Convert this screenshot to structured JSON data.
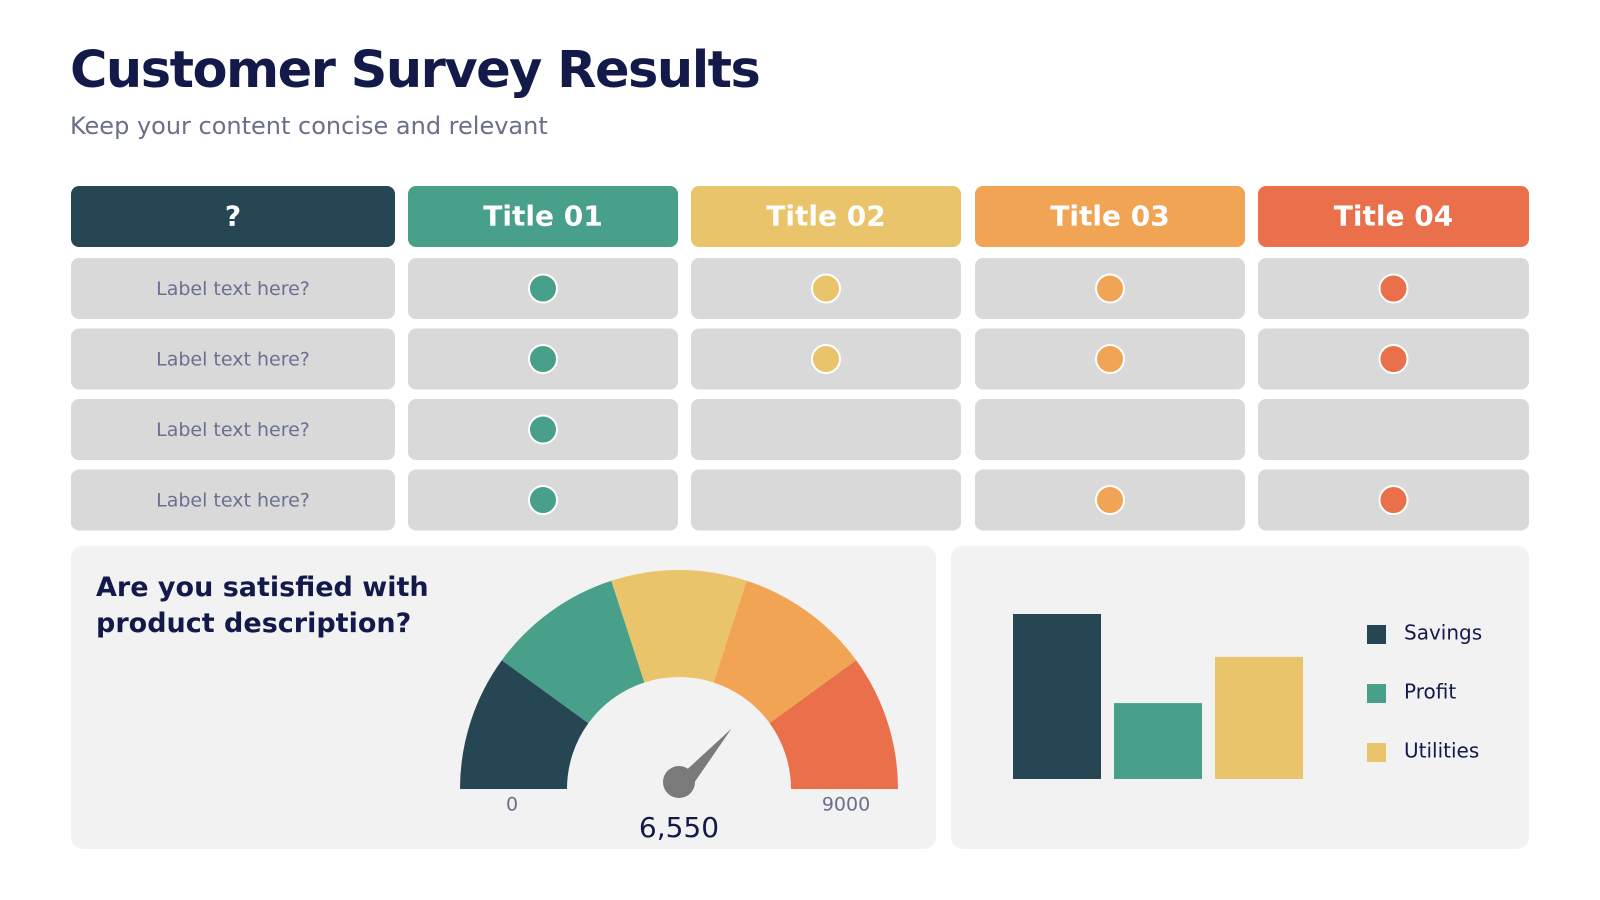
{
  "header": {
    "title": "Customer Survey Results",
    "subtitle": "Keep your content concise and relevant"
  },
  "table": {
    "corner": "?",
    "columns": [
      {
        "title": "Title 01",
        "color": "#48a08a"
      },
      {
        "title": "Title 02",
        "color": "#e9c46a"
      },
      {
        "title": "Title 03",
        "color": "#f2a455"
      },
      {
        "title": "Title 04",
        "color": "#e9704a"
      }
    ],
    "rows": [
      {
        "label": "Label text here?",
        "marks": [
          true,
          true,
          true,
          true
        ]
      },
      {
        "label": "Label text here?",
        "marks": [
          true,
          true,
          true,
          true
        ]
      },
      {
        "label": "Label text here?",
        "marks": [
          true,
          false,
          false,
          false
        ]
      },
      {
        "label": "Label text here?",
        "marks": [
          true,
          false,
          true,
          true
        ]
      }
    ]
  },
  "chart_data": [
    {
      "type": "gauge",
      "title": "Are you satisfied with product description?",
      "ylim": [
        0,
        9000
      ],
      "yticks": [
        0,
        9000
      ],
      "values": [
        6550
      ],
      "value_labels": [
        "6,550"
      ],
      "colors": [
        "#264653",
        "#48a08a",
        "#e9c46a",
        "#f2a455",
        "#e9704a"
      ],
      "needle_color": "#7a7a7a"
    },
    {
      "type": "bar",
      "ylim": [
        0,
        100
      ],
      "series": [
        {
          "name": "Savings",
          "color": "#264653",
          "values": [
            100
          ]
        },
        {
          "name": "Profit",
          "color": "#48a08a",
          "values": [
            46
          ]
        },
        {
          "name": "Utilities",
          "color": "#e9c46a",
          "values": [
            74
          ]
        }
      ]
    }
  ]
}
